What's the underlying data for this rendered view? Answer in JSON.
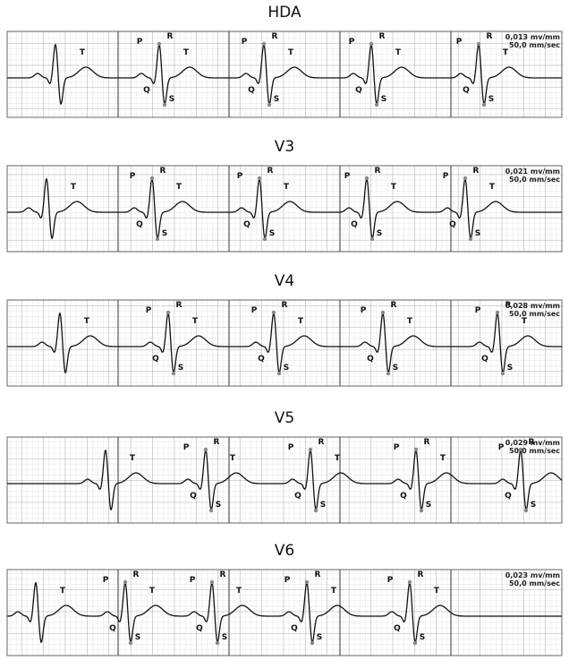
{
  "panels": [
    {
      "title": "HDA",
      "scale": [
        "0,013 mv/mm",
        "50,0 mm/sec"
      ],
      "beats": [
        {
          "t": "T"
        },
        {
          "p": "P",
          "r": "R",
          "q": "Q",
          "s": "S",
          "t": "T"
        },
        {
          "p": "P",
          "r": "R",
          "q": "Q",
          "s": "S",
          "t": "T"
        },
        {
          "p": "P",
          "r": "R",
          "q": "Q",
          "s": "S",
          "t": "T"
        },
        {
          "p": "P",
          "r": "R",
          "q": "Q",
          "s": "S",
          "t": "T"
        }
      ]
    },
    {
      "title": "V3",
      "scale": [
        "0,021 mv/mm",
        "50,0 mm/sec"
      ],
      "beats": [
        {
          "t": "T"
        },
        {
          "p": "P",
          "r": "R",
          "q": "Q",
          "s": "S",
          "t": "T"
        },
        {
          "p": "P",
          "r": "R",
          "q": "Q",
          "s": "S",
          "t": "T"
        },
        {
          "p": "P",
          "r": "R",
          "q": "Q",
          "s": "S",
          "t": "T"
        },
        {
          "p": "P",
          "r": "R",
          "q": "Q",
          "s": "S",
          "t": "T"
        }
      ]
    },
    {
      "title": "V4",
      "scale": [
        "0,028 mv/mm",
        "50,0 mm/sec"
      ],
      "beats": [
        {
          "t": "T"
        },
        {
          "p": "P",
          "r": "R",
          "q": "Q",
          "s": "S",
          "t": "T"
        },
        {
          "p": "P",
          "r": "R",
          "q": "Q",
          "s": "S",
          "t": "T"
        },
        {
          "p": "P",
          "r": "R",
          "q": "Q",
          "s": "S",
          "t": "T"
        },
        {
          "p": "P",
          "r": "R",
          "q": "Q",
          "s": "S",
          "t": "T"
        }
      ]
    },
    {
      "title": "V5",
      "scale": [
        "0,029 mv/mm",
        "50,0 mm/sec"
      ],
      "beats": [
        {
          "t": "T"
        },
        {
          "p": "P",
          "r": "R",
          "q": "Q",
          "s": "S",
          "t": "T"
        },
        {
          "p": "P",
          "r": "R",
          "q": "Q",
          "s": "S",
          "t": "T"
        },
        {
          "p": "P",
          "r": "R",
          "q": "Q",
          "s": "S",
          "t": "T"
        },
        {
          "p": "P",
          "r": "R",
          "q": "Q",
          "s": "S"
        }
      ]
    },
    {
      "title": "V6",
      "scale": [
        "0,023 mv/mm",
        "50,0 mm/sec"
      ],
      "beats": [
        {
          "t": "T"
        },
        {
          "p": "P",
          "r": "R",
          "q": "Q",
          "s": "S",
          "t": "T"
        },
        {
          "p": "P",
          "r": "R",
          "q": "Q",
          "s": "S",
          "t": "T"
        },
        {
          "p": "P",
          "r": "R",
          "q": "Q",
          "s": "S",
          "t": "T"
        },
        {
          "p": "P",
          "r": "R",
          "q": "Q",
          "s": "S",
          "t": "T"
        }
      ]
    }
  ]
}
